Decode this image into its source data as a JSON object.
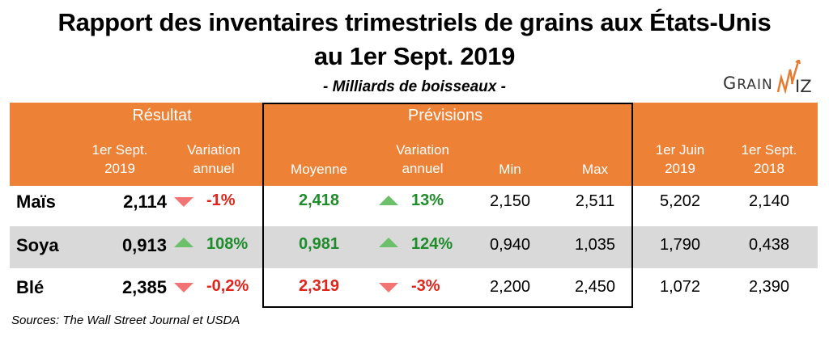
{
  "title_line1": "Rapport des inventaires trimestriels de grains aux États-Unis",
  "title_line2": "au 1er Sept. 2019",
  "subtitle": "- Milliards de boisseaux -",
  "logo": {
    "text": "GRAIN",
    "accent_text": "WIZ",
    "accent_color": "#e57b2f"
  },
  "colors": {
    "header": "#ed8136",
    "band": "#d9d9d9",
    "positive": "#1e8c2a",
    "negative": "#e0241b",
    "up_arrow": "#6cc06c",
    "down_arrow": "#f27474"
  },
  "header": {
    "group_result": "Résultat",
    "group_forecast": "Prévisions",
    "col_result_value": [
      "1er Sept.",
      "2019"
    ],
    "col_result_change": [
      "Variation",
      "annuel"
    ],
    "col_avg": "Moyenne",
    "col_avg_change": [
      "Variation",
      "annuel"
    ],
    "col_min": "Min",
    "col_max": "Max",
    "col_june": [
      "1er Juin",
      "2019"
    ],
    "col_prev_year": [
      "1er Sept.",
      "2018"
    ]
  },
  "rows": [
    {
      "label": "Maïs",
      "result": "2,114",
      "result_change": "-1%",
      "result_dir": "down",
      "avg": "2,418",
      "avg_color": "green",
      "avg_change": "13%",
      "avg_dir": "up",
      "min": "2,150",
      "max": "2,511",
      "june": "5,202",
      "prev_year": "2,140"
    },
    {
      "label": "Soya",
      "result": "0,913",
      "result_change": "108%",
      "result_dir": "up",
      "avg": "0,981",
      "avg_color": "green",
      "avg_change": "124%",
      "avg_dir": "up",
      "min": "0,940",
      "max": "1,035",
      "june": "1,790",
      "prev_year": "0,438"
    },
    {
      "label": "Blé",
      "result": "2,385",
      "result_change": "-0,2%",
      "result_dir": "down",
      "avg": "2,319",
      "avg_color": "red",
      "avg_change": "-3%",
      "avg_dir": "down",
      "min": "2,200",
      "max": "2,450",
      "june": "1,072",
      "prev_year": "2,390"
    }
  ],
  "source": "Sources: The Wall Street Journal et USDA"
}
